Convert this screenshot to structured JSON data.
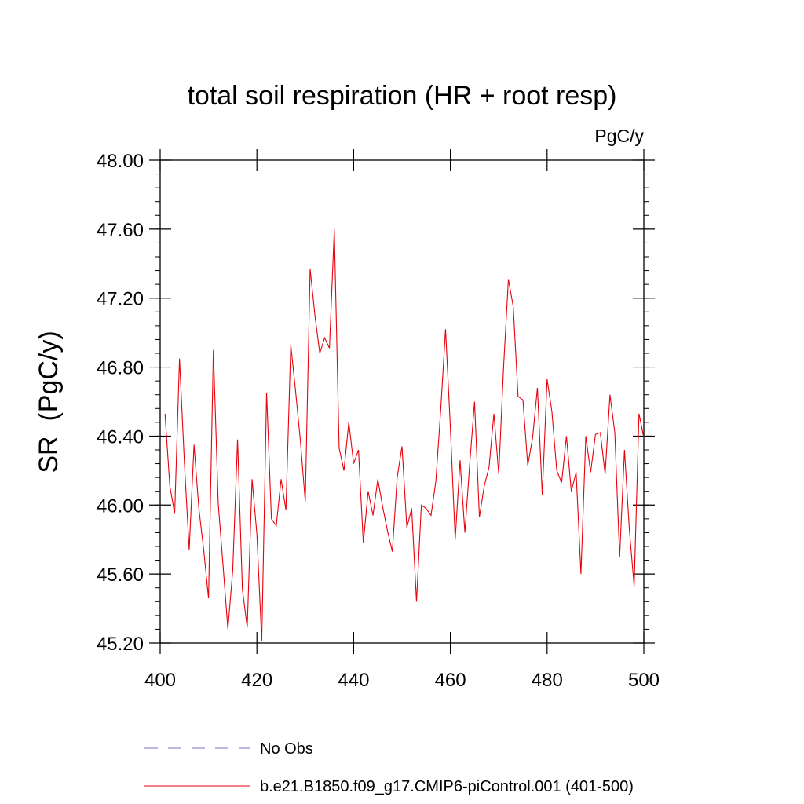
{
  "chart_data": {
    "type": "line",
    "title": "total soil respiration (HR + root resp)",
    "units_label": "PgC/y",
    "ylabel": "SR  (PgC/y)",
    "xlabel": "",
    "xlim": [
      400,
      500
    ],
    "ylim": [
      45.2,
      48.0
    ],
    "x_ticks": [
      400,
      420,
      440,
      460,
      480,
      500
    ],
    "x_tick_labels": [
      "400",
      "420",
      "440",
      "460",
      "480",
      "500"
    ],
    "y_ticks": [
      45.2,
      45.6,
      46.0,
      46.4,
      46.8,
      47.2,
      47.6,
      48.0
    ],
    "y_tick_labels": [
      "45.20",
      "45.60",
      "46.00",
      "46.40",
      "46.80",
      "47.20",
      "47.60",
      "48.00"
    ],
    "legend": [
      {
        "label": "No Obs",
        "color": "#7b6fc4",
        "style": "dashed"
      },
      {
        "label": "b.e21.B1850.f09_g17.CMIP6-piControl.001 (401-500)",
        "color": "#e8000b",
        "style": "solid"
      }
    ],
    "series": [
      {
        "name": "b.e21.B1850.f09_g17.CMIP6-piControl.001 (401-500)",
        "color": "#e8000b",
        "x": [
          401,
          402,
          403,
          404,
          405,
          406,
          407,
          408,
          409,
          410,
          411,
          412,
          413,
          414,
          415,
          416,
          417,
          418,
          419,
          420,
          421,
          422,
          423,
          424,
          425,
          426,
          427,
          428,
          429,
          430,
          431,
          432,
          433,
          434,
          435,
          436,
          437,
          438,
          439,
          440,
          441,
          442,
          443,
          444,
          445,
          446,
          447,
          448,
          449,
          450,
          451,
          452,
          453,
          454,
          455,
          456,
          457,
          458,
          459,
          460,
          461,
          462,
          463,
          464,
          465,
          466,
          467,
          468,
          469,
          470,
          471,
          472,
          473,
          474,
          475,
          476,
          477,
          478,
          479,
          480,
          481,
          482,
          483,
          484,
          485,
          486,
          487,
          488,
          489,
          490,
          491,
          492,
          493,
          494,
          495,
          496,
          497,
          498,
          499,
          500
        ],
        "values": [
          46.53,
          46.11,
          45.95,
          46.85,
          46.25,
          45.74,
          46.35,
          45.98,
          45.74,
          45.46,
          46.9,
          46.01,
          45.65,
          45.28,
          45.62,
          46.38,
          45.51,
          45.29,
          46.15,
          45.83,
          45.21,
          46.65,
          45.92,
          45.88,
          46.15,
          45.97,
          46.93,
          46.66,
          46.37,
          46.02,
          47.37,
          47.1,
          46.88,
          46.97,
          46.91,
          47.6,
          46.33,
          46.2,
          46.48,
          46.24,
          46.32,
          45.78,
          46.08,
          45.94,
          46.15,
          45.99,
          45.85,
          45.73,
          46.16,
          46.34,
          45.87,
          45.98,
          45.44,
          46.0,
          45.98,
          45.94,
          46.14,
          46.55,
          47.02,
          46.45,
          45.8,
          46.26,
          45.84,
          46.24,
          46.6,
          45.93,
          46.11,
          46.22,
          46.53,
          46.18,
          46.8,
          47.31,
          47.15,
          46.63,
          46.61,
          46.23,
          46.39,
          46.68,
          46.06,
          46.73,
          46.54,
          46.2,
          46.13,
          46.4,
          46.08,
          46.19,
          45.6,
          46.4,
          46.19,
          46.41,
          46.42,
          46.18,
          46.64,
          46.42,
          45.7,
          46.32,
          45.86,
          45.53,
          46.53,
          46.39
        ]
      }
    ]
  }
}
